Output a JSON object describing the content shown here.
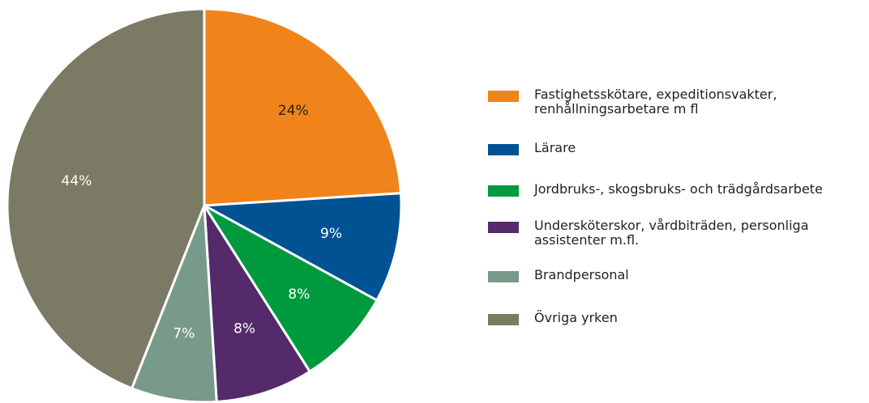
{
  "chart_data": {
    "type": "pie",
    "categories": [
      "Fastighetsskötare, expeditionsvakter, renhållningsarbetare m fl",
      "Lärare",
      "Jordbruks-, skogsbruks- och trädgårdsarbete",
      "Undersköterskor, vårdbiträden, personliga assistenter m.fl.",
      "Brandpersonal",
      "Övriga yrken"
    ],
    "values": [
      24,
      9,
      8,
      8,
      7,
      44
    ],
    "value_labels": [
      "24%",
      "9%",
      "8%",
      "8%",
      "7%",
      "44%"
    ],
    "colors": [
      "#f0831a",
      "#005293",
      "#009a3e",
      "#542a6b",
      "#789a8a",
      "#7b7a65"
    ]
  }
}
